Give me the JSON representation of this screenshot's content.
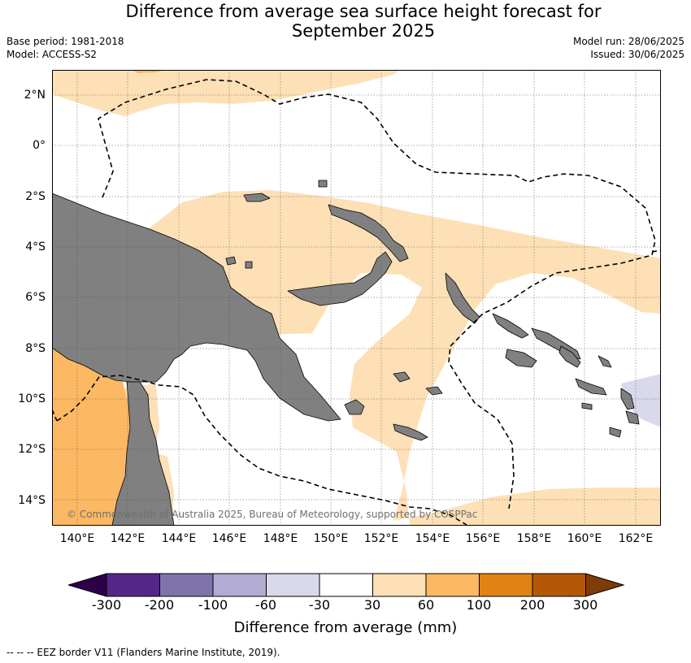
{
  "header": {
    "title_line1": "Difference from average sea surface height forecast for",
    "title_line2": "September 2025",
    "base_period": "Base period: 1981-2018",
    "model": "Model: ACCESS-S2",
    "model_run": "Model run: 28/06/2025",
    "issued": "Issued: 30/06/2025"
  },
  "map": {
    "region": "Papua New Guinea and surrounding waters",
    "lon_range": [
      139,
      163
    ],
    "lat_range": [
      -15,
      3
    ],
    "lon_ticks": [
      "140°E",
      "142°E",
      "144°E",
      "146°E",
      "148°E",
      "150°E",
      "152°E",
      "154°E",
      "156°E",
      "158°E",
      "160°E",
      "162°E"
    ],
    "lat_ticks": [
      "2°N",
      "0°",
      "2°S",
      "4°S",
      "6°S",
      "8°S",
      "10°S",
      "12°S",
      "14°S"
    ],
    "gridlines": true,
    "land_color": "#808080",
    "copyright": "© Commonwealth of Australia 2025, Bureau of Meteorology, supported by COSPPac",
    "eez_line_style": "dashed"
  },
  "colorbar": {
    "title": "Difference from average (mm)",
    "labels": [
      "-300",
      "-200",
      "-100",
      "-60",
      "-30",
      "30",
      "60",
      "100",
      "200",
      "300"
    ],
    "bins": [
      {
        "range": "< -300",
        "color": "#2d004b"
      },
      {
        "range": "-300 to -200",
        "color": "#542788"
      },
      {
        "range": "-200 to -100",
        "color": "#8073ac"
      },
      {
        "range": "-100 to -60",
        "color": "#b2abd2"
      },
      {
        "range": "-60 to -30",
        "color": "#d8daeb"
      },
      {
        "range": "-30 to 30",
        "color": "#ffffff"
      },
      {
        "range": "30 to 60",
        "color": "#fee0b6"
      },
      {
        "range": "60 to 100",
        "color": "#fdb863"
      },
      {
        "range": "100 to 200",
        "color": "#e08214"
      },
      {
        "range": "200 to 300",
        "color": "#b35806"
      },
      {
        "range": "> 300",
        "color": "#7f3b08"
      }
    ]
  },
  "footnote": "-- -- -- EEZ border V11 (Flanders Marine Institute, 2019)."
}
